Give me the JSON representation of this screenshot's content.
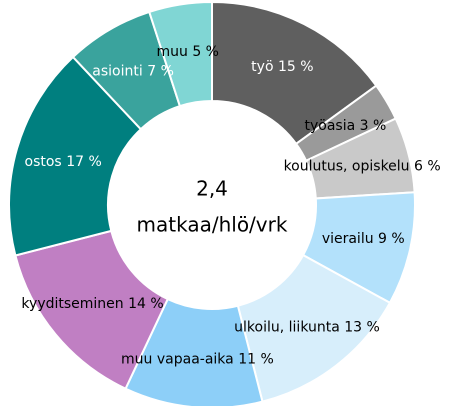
{
  "chart_data": {
    "type": "donut",
    "categories": [
      "työ",
      "työasia",
      "koulutus, opiskelu",
      "vierailu",
      "ulkoilu, liikunta",
      "muu vapaa-aika",
      "kyyditseminen",
      "ostos",
      "asiointi",
      "muu"
    ],
    "values": [
      15,
      3,
      6,
      9,
      13,
      11,
      14,
      17,
      7,
      5
    ],
    "value_labels": [
      "15 %",
      "3 %",
      "6 %",
      "9 %",
      "13 %",
      "11 %",
      "14 %",
      "17 %",
      "7 %",
      "5 %"
    ],
    "colors": [
      "#5f5f5f",
      "#9a9a9a",
      "#c9c9c9",
      "#b3e1fb",
      "#d7eefb",
      "#8dcff8",
      "#c07fc3",
      "#007f7f",
      "#3aa39d",
      "#80d6d4"
    ],
    "center_text": [
      "2,4",
      "matkaa/hlö/vrk"
    ]
  }
}
